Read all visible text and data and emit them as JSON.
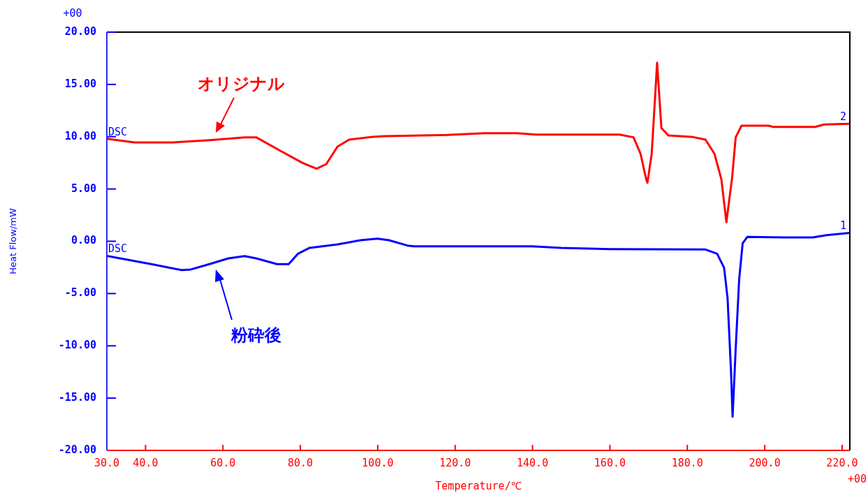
{
  "chart_data": {
    "type": "line",
    "xlabel": "Temperature/℃",
    "ylabel": "Heat Flow/mW",
    "xlim": [
      30,
      222
    ],
    "ylim": [
      -20,
      20
    ],
    "xticks": [
      {
        "value": 30,
        "label": "30.0"
      },
      {
        "value": 40,
        "label": "40.0"
      },
      {
        "value": 60,
        "label": "60.0"
      },
      {
        "value": 80,
        "label": "80.0"
      },
      {
        "value": 100,
        "label": "100.0"
      },
      {
        "value": 120,
        "label": "120.0"
      },
      {
        "value": 140,
        "label": "140.0"
      },
      {
        "value": 160,
        "label": "160.0"
      },
      {
        "value": 180,
        "label": "180.0"
      },
      {
        "value": 200,
        "label": "200.0"
      },
      {
        "value": 220,
        "label": "220.0"
      }
    ],
    "yticks": [
      {
        "value": -20,
        "label": "-20.00"
      },
      {
        "value": -15,
        "label": "-15.00"
      },
      {
        "value": -10,
        "label": "-10.00"
      },
      {
        "value": -5,
        "label": "-5.00"
      },
      {
        "value": 0,
        "label": "0.00"
      },
      {
        "value": 5,
        "label": "5.00"
      },
      {
        "value": 10,
        "label": "10.00"
      },
      {
        "value": 15,
        "label": "15.00"
      },
      {
        "value": 20,
        "label": "20.00"
      }
    ],
    "grid": false,
    "legend": false,
    "marker": "none",
    "line_style": "solid",
    "series": [
      {
        "name": "オリジナル",
        "color": "#ff0000",
        "x": [
          30,
          37.2,
          47,
          56.5,
          65.6,
          68.6,
          75.1,
          80.5,
          84.2,
          86.7,
          89.6,
          92.6,
          98.6,
          101.7,
          108.9,
          117.9,
          127.5,
          136,
          140.8,
          162.5,
          166.1,
          167.9,
          169.4,
          169.7,
          170.8,
          172.2,
          173.3,
          175.1,
          181.1,
          184.7,
          187,
          188.8,
          190.1,
          191.6,
          192.5,
          194,
          201,
          202.1,
          213,
          215.4,
          222
        ],
        "values": [
          9.8,
          9.45,
          9.45,
          9.67,
          9.94,
          9.94,
          8.6,
          7.5,
          6.93,
          7.38,
          9.05,
          9.72,
          9.99,
          10.05,
          10.1,
          10.17,
          10.34,
          10.34,
          10.2,
          10.2,
          9.94,
          8.38,
          5.9,
          5.6,
          8.38,
          17.07,
          10.83,
          10.12,
          9.99,
          9.72,
          8.38,
          5.93,
          1.82,
          6.16,
          9.94,
          11.05,
          11.05,
          10.94,
          10.94,
          11.17,
          11.24
        ]
      },
      {
        "name": "粉砕後",
        "color": "#0000ff",
        "x": [
          30,
          41.5,
          49.3,
          51.7,
          56.5,
          61.4,
          65.6,
          68.6,
          74,
          77,
          79.4,
          82.4,
          89.6,
          95.6,
          99.9,
          102.9,
          107.7,
          109.5,
          139.6,
          147.4,
          160,
          184.7,
          187.7,
          189.5,
          190.4,
          191.3,
          191.7,
          192.5,
          193.4,
          194.3,
          195.5,
          205.1,
          212.4,
          216,
          222
        ],
        "values": [
          -1.4,
          -2.19,
          -2.75,
          -2.7,
          -2.19,
          -1.64,
          -1.42,
          -1.64,
          -2.19,
          -2.19,
          -1.19,
          -0.63,
          -0.3,
          0.1,
          0.25,
          0.1,
          -0.41,
          -0.48,
          -0.48,
          -0.63,
          -0.75,
          -0.79,
          -1.19,
          -2.53,
          -5.42,
          -12.5,
          -16.78,
          -10.3,
          -3.64,
          -0.19,
          0.41,
          0.37,
          0.37,
          0.59,
          0.81
        ]
      }
    ],
    "annotations": [
      "+00",
      "+00",
      "DSC",
      "DSC",
      "2",
      "1"
    ]
  }
}
